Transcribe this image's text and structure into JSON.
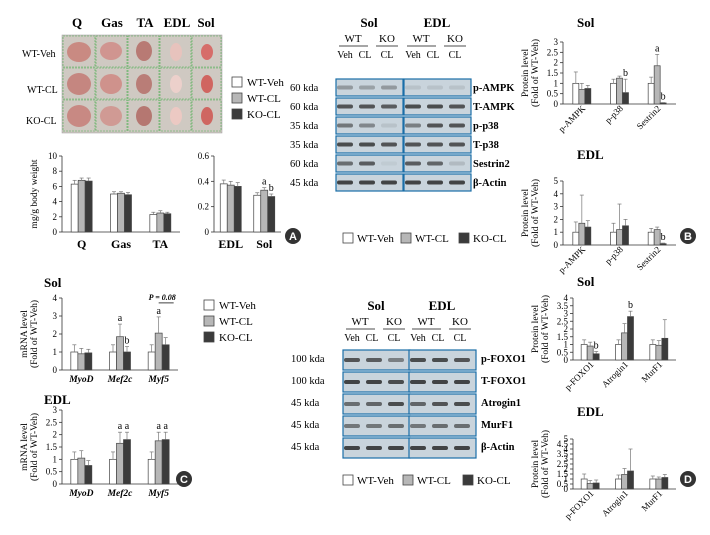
{
  "legend": [
    "WT-Veh",
    "WT-CL",
    "KO-CL"
  ],
  "colors": {
    "wt_veh": "#ffffff",
    "wt_cl": "#b7b7b7",
    "ko_cl": "#3b3b3b",
    "edge": "#444444",
    "photo_bg": "#cfc9c2",
    "grid_line": "#4caf50",
    "blot_frame": "#1a6fa8",
    "blot_bg": "#c9d4dc",
    "band": "#2a2a2a"
  },
  "panel_labels": [
    "A",
    "B",
    "C",
    "D"
  ],
  "photo": {
    "columns": [
      "Q",
      "Gas",
      "TA",
      "EDL",
      "Sol"
    ],
    "rows": [
      "WT-Veh",
      "WT-CL",
      "KO-CL"
    ]
  },
  "blot_b": {
    "headers": [
      "Sol",
      "EDL"
    ],
    "genotypes": [
      "WT",
      "KO"
    ],
    "treatments": [
      "Veh",
      "CL",
      "CL"
    ],
    "sizes": [
      "60 kda",
      "60 kda",
      "35 kda",
      "35 kda",
      "60 kda",
      "45 kda"
    ],
    "proteins": [
      "p-AMPK",
      "T-AMPK",
      "p-p38",
      "T-p38",
      "Sestrin2",
      "β-Actin"
    ]
  },
  "blot_d": {
    "headers": [
      "Sol",
      "EDL"
    ],
    "genotypes": [
      "WT",
      "KO"
    ],
    "treatments": [
      "Veh",
      "CL",
      "CL"
    ],
    "sizes": [
      "100 kda",
      "100 kda",
      "45 kda",
      "45 kda",
      "45 kda"
    ],
    "proteins": [
      "p-FOXO1",
      "T-FOXO1",
      "Atrogin1",
      "MurF1",
      "β-Actin"
    ]
  },
  "chart_data": [
    {
      "id": "A1",
      "type": "bar",
      "title": "",
      "ylabel": "mg/g body weight",
      "ylim": [
        0,
        10
      ],
      "yticks": [
        0,
        2,
        4,
        6,
        8,
        10
      ],
      "categories": [
        "Q",
        "Gas",
        "TA"
      ],
      "italic_categories": false,
      "series": [
        {
          "name": "WT-Veh",
          "values": [
            6.3,
            5.0,
            2.3
          ],
          "errors": [
            0.5,
            0.3,
            0.3
          ]
        },
        {
          "name": "WT-CL",
          "values": [
            6.8,
            5.1,
            2.5
          ],
          "errors": [
            0.3,
            0.2,
            0.3
          ]
        },
        {
          "name": "KO-CL",
          "values": [
            6.7,
            4.9,
            2.4
          ],
          "errors": [
            0.4,
            0.3,
            0.2
          ]
        }
      ],
      "annotations": []
    },
    {
      "id": "A2",
      "type": "bar",
      "title": "",
      "ylabel": "",
      "ylim": [
        0,
        0.6
      ],
      "yticks": [
        0,
        0.2,
        0.4,
        0.6
      ],
      "categories": [
        "EDL",
        "Sol"
      ],
      "italic_categories": false,
      "series": [
        {
          "name": "WT-Veh",
          "values": [
            0.38,
            0.29
          ],
          "errors": [
            0.03,
            0.02
          ]
        },
        {
          "name": "WT-CL",
          "values": [
            0.37,
            0.33
          ],
          "errors": [
            0.03,
            0.02
          ]
        },
        {
          "name": "KO-CL",
          "values": [
            0.36,
            0.28
          ],
          "errors": [
            0.03,
            0.02
          ]
        }
      ],
      "annotations": [
        {
          "category": 1,
          "series": 1,
          "text": "a"
        },
        {
          "category": 1,
          "series": 2,
          "text": "b"
        }
      ]
    },
    {
      "id": "B1",
      "type": "bar",
      "title": "Sol",
      "ylabel": "Protein level (Fold of WT-Veh)",
      "ylim": [
        0,
        3
      ],
      "yticks": [
        0,
        0.5,
        1,
        1.5,
        2,
        2.5,
        3
      ],
      "categories": [
        "p-AMPK",
        "p-p38",
        "Sestrin2"
      ],
      "italic_categories": false,
      "series": [
        {
          "name": "WT-Veh",
          "values": [
            1.0,
            1.0,
            1.0
          ],
          "errors": [
            0.55,
            0.2,
            0.3
          ]
        },
        {
          "name": "WT-CL",
          "values": [
            0.7,
            1.25,
            1.85
          ],
          "errors": [
            0.3,
            0.1,
            0.55
          ]
        },
        {
          "name": "KO-CL",
          "values": [
            0.75,
            0.55,
            0.05
          ],
          "errors": [
            0.15,
            0.65,
            0.02
          ]
        }
      ],
      "annotations": [
        {
          "category": 1,
          "series": 2,
          "text": "b"
        },
        {
          "category": 2,
          "series": 1,
          "text": "a"
        },
        {
          "category": 2,
          "series": 2,
          "text": "b"
        }
      ]
    },
    {
      "id": "B2",
      "type": "bar",
      "title": "EDL",
      "ylabel": "Protein level (Fold of WT-Veh)",
      "ylim": [
        0,
        5
      ],
      "yticks": [
        0,
        1,
        2,
        3,
        4,
        5
      ],
      "categories": [
        "p-AMPK",
        "p-p38",
        "Sestrin2"
      ],
      "italic_categories": false,
      "series": [
        {
          "name": "WT-Veh",
          "values": [
            1.0,
            1.0,
            1.0
          ],
          "errors": [
            0.8,
            0.7,
            0.3
          ]
        },
        {
          "name": "WT-CL",
          "values": [
            1.7,
            1.2,
            1.2
          ],
          "errors": [
            2.2,
            2.0,
            0.2
          ]
        },
        {
          "name": "KO-CL",
          "values": [
            1.4,
            1.5,
            0.1
          ],
          "errors": [
            0.5,
            0.5,
            0.05
          ]
        }
      ],
      "annotations": [
        {
          "category": 2,
          "series": 2,
          "text": "b"
        }
      ]
    },
    {
      "id": "C1",
      "type": "bar",
      "title": "Sol",
      "ylabel": "mRNA level (Fold of WT-Veh)",
      "ylim": [
        0,
        4
      ],
      "yticks": [
        0,
        1,
        2,
        3,
        4
      ],
      "categories": [
        "MyoD",
        "Mef2c",
        "Myf5"
      ],
      "italic_categories": true,
      "series": [
        {
          "name": "WT-Veh",
          "values": [
            1.0,
            1.0,
            1.0
          ],
          "errors": [
            0.4,
            0.4,
            0.4
          ]
        },
        {
          "name": "WT-CL",
          "values": [
            0.9,
            1.85,
            2.05
          ],
          "errors": [
            0.3,
            0.7,
            0.9
          ]
        },
        {
          "name": "KO-CL",
          "values": [
            0.95,
            1.0,
            1.4
          ],
          "errors": [
            0.2,
            0.3,
            0.4
          ]
        }
      ],
      "annotations": [
        {
          "category": 1,
          "series": 1,
          "text": "a"
        },
        {
          "category": 1,
          "series": 2,
          "text": "b"
        },
        {
          "category": 2,
          "series": 1,
          "text": "a"
        }
      ],
      "pvalue": {
        "text": "P = 0.08",
        "category": 2
      }
    },
    {
      "id": "C2",
      "type": "bar",
      "title": "EDL",
      "ylabel": "mRNA level (Fold of WT-Veh)",
      "ylim": [
        0,
        3
      ],
      "yticks": [
        0,
        0.5,
        1,
        1.5,
        2,
        2.5,
        3
      ],
      "categories": [
        "MyoD",
        "Mef2c",
        "Myf5"
      ],
      "italic_categories": true,
      "series": [
        {
          "name": "WT-Veh",
          "values": [
            1.0,
            1.0,
            1.0
          ],
          "errors": [
            0.3,
            0.3,
            0.3
          ]
        },
        {
          "name": "WT-CL",
          "values": [
            1.05,
            1.65,
            1.75
          ],
          "errors": [
            0.3,
            0.45,
            0.35
          ]
        },
        {
          "name": "KO-CL",
          "values": [
            0.75,
            1.8,
            1.8
          ],
          "errors": [
            0.2,
            0.3,
            0.3
          ]
        }
      ],
      "annotations": [
        {
          "category": 1,
          "series": 1,
          "text": "a"
        },
        {
          "category": 1,
          "series": 2,
          "text": "a"
        },
        {
          "category": 2,
          "series": 1,
          "text": "a"
        },
        {
          "category": 2,
          "series": 2,
          "text": "a"
        }
      ]
    },
    {
      "id": "D1",
      "type": "bar",
      "title": "Sol",
      "ylabel": "Protein level (Fold of WT-Veh)",
      "ylim": [
        0,
        4
      ],
      "yticks": [
        0,
        0.5,
        1,
        1.5,
        2,
        2.5,
        3,
        3.5,
        4
      ],
      "categories": [
        "p-FOXO1",
        "Atrogin1",
        "MurF1"
      ],
      "italic_categories": false,
      "series": [
        {
          "name": "WT-Veh",
          "values": [
            1.0,
            1.0,
            1.0
          ],
          "errors": [
            0.3,
            0.3,
            0.3
          ]
        },
        {
          "name": "WT-CL",
          "values": [
            0.9,
            1.75,
            0.95
          ],
          "errors": [
            0.25,
            0.6,
            0.3
          ]
        },
        {
          "name": "KO-CL",
          "values": [
            0.4,
            2.8,
            1.4
          ],
          "errors": [
            0.15,
            0.35,
            1.2
          ]
        }
      ],
      "annotations": [
        {
          "category": 0,
          "series": 2,
          "text": "b"
        },
        {
          "category": 1,
          "series": 2,
          "text": "b"
        }
      ]
    },
    {
      "id": "D2",
      "type": "bar",
      "title": "EDL",
      "ylabel": "Protein level (Fold of WT-Veh)",
      "ylim": [
        0,
        5
      ],
      "yticks": [
        0,
        0.5,
        1,
        1.5,
        2,
        2.5,
        3,
        3.5,
        4,
        4.5,
        5
      ],
      "categories": [
        "p-FOXO1",
        "Atrogin1",
        "MurF1"
      ],
      "italic_categories": false,
      "series": [
        {
          "name": "WT-Veh",
          "values": [
            1.0,
            1.0,
            1.0
          ],
          "errors": [
            0.5,
            0.4,
            0.3
          ]
        },
        {
          "name": "WT-CL",
          "values": [
            0.55,
            1.45,
            1.0
          ],
          "errors": [
            0.3,
            0.6,
            0.2
          ]
        },
        {
          "name": "KO-CL",
          "values": [
            0.6,
            1.8,
            1.15
          ],
          "errors": [
            0.3,
            2.2,
            0.3
          ]
        }
      ],
      "annotations": []
    }
  ]
}
